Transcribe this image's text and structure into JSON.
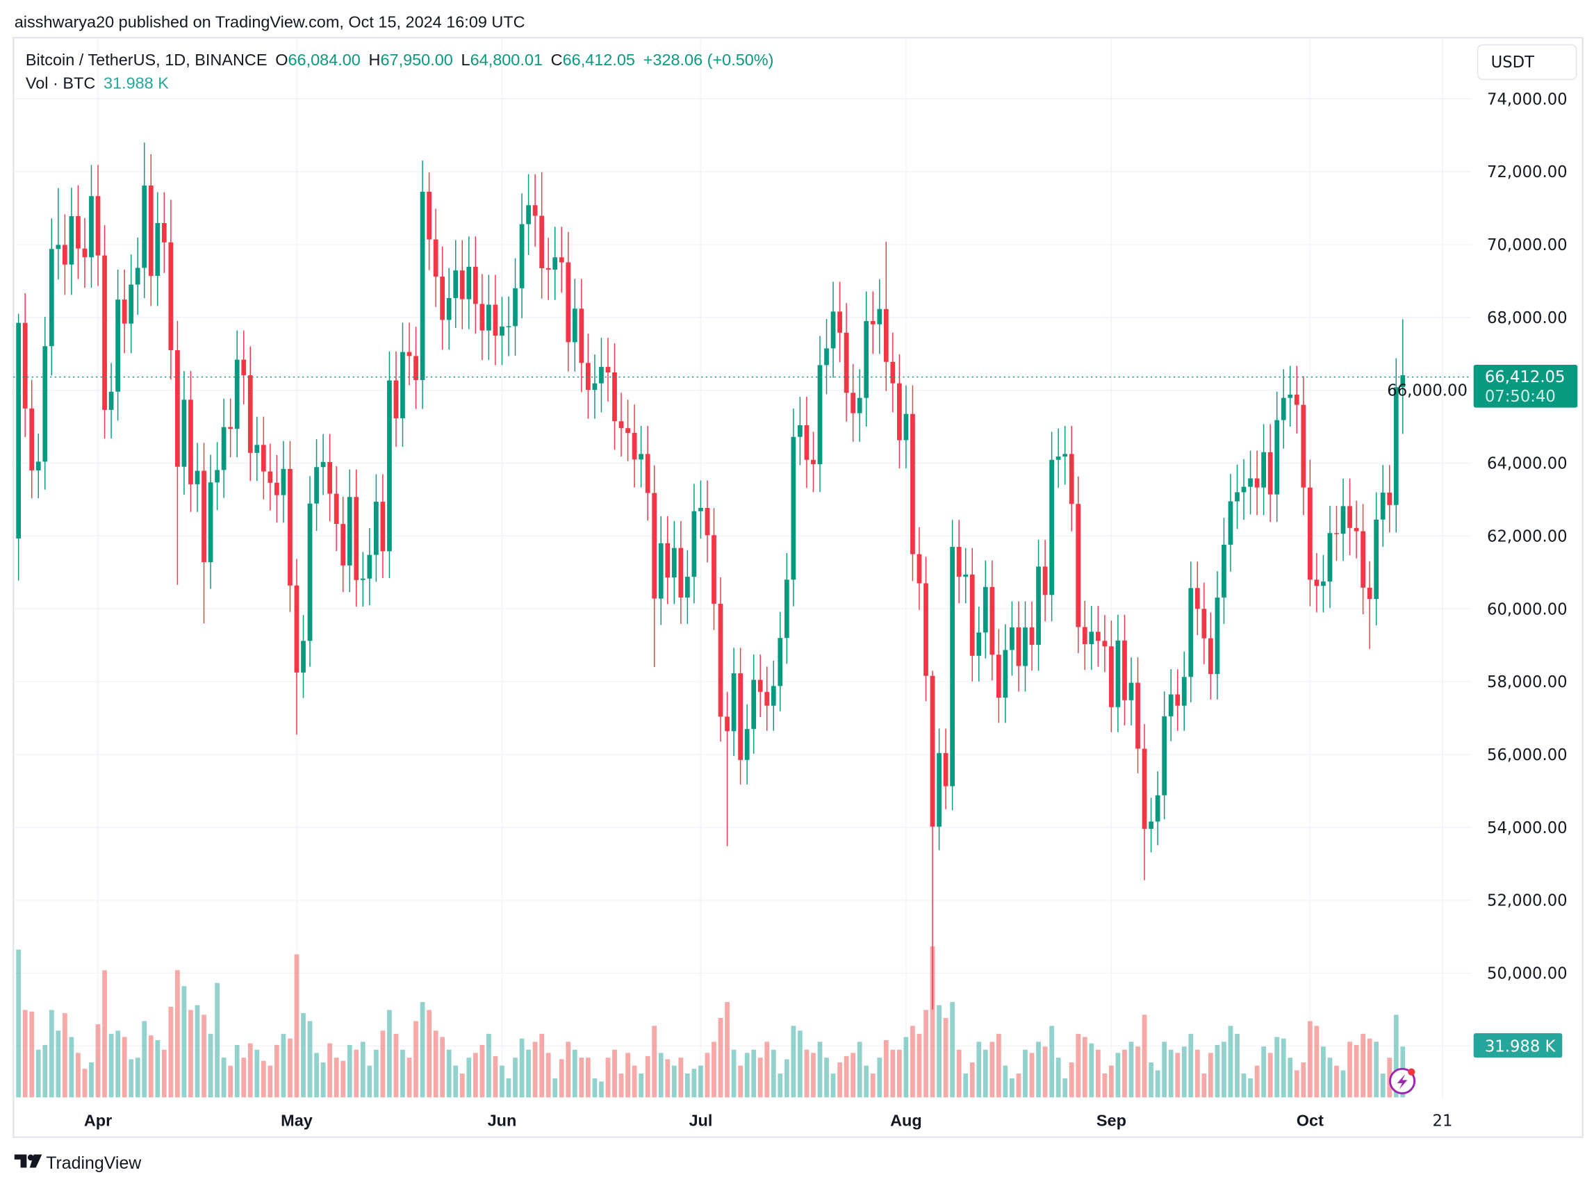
{
  "header": {
    "published": "aisshwarya20 published on TradingView.com, Oct 15, 2024 16:09 UTC"
  },
  "legend": {
    "symbol": "Bitcoin / TetherUS, 1D, BINANCE",
    "o_label": "O",
    "o_value": "66,084.00",
    "h_label": "H",
    "h_value": "67,950.00",
    "l_label": "L",
    "l_value": "64,800.01",
    "c_label": "C",
    "c_value": "66,412.05",
    "change": "+328.06 (+0.50%)",
    "vol_label": "Vol · BTC",
    "vol_value": "31.988 K"
  },
  "price_axis": {
    "currency": "USDT",
    "last_price": "66,412.05",
    "countdown": "07:50:40",
    "volume_label": "31.988 K"
  },
  "footer": {
    "brand": "TradingView"
  },
  "colors": {
    "up": "#089981",
    "down": "#f23645",
    "vol_up": "#26a69a",
    "vol_down": "#ef5350",
    "grid": "#f0f3fa"
  },
  "chart_data": {
    "type": "candlestick",
    "title": "Bitcoin / TetherUS, 1D, BINANCE",
    "start_date": "2024-03-20",
    "end_date": "2024-10-15",
    "first_open": 61930,
    "ylim": [
      47000,
      74600
    ],
    "y_ticks": [
      74000,
      72000,
      70000,
      68000,
      66000,
      64000,
      62000,
      60000,
      58000,
      56000,
      54000,
      52000,
      50000
    ],
    "y_tick_labels": [
      "74,000.00",
      "72,000.00",
      "70,000.00",
      "68,000.00",
      "66,000.00",
      "64,000.00",
      "62,000.00",
      "60,000.00",
      "58,000.00",
      "56,000.00",
      "54,000.00",
      "52,000.00",
      "50,000.00"
    ],
    "x_ticks": [
      {
        "label": "Apr",
        "day_index": 12
      },
      {
        "label": "May",
        "day_index": 42
      },
      {
        "label": "Jun",
        "day_index": 73
      },
      {
        "label": "Jul",
        "day_index": 103
      },
      {
        "label": "Aug",
        "day_index": 134
      },
      {
        "label": "Sep",
        "day_index": 165
      },
      {
        "label": "Oct",
        "day_index": 195
      },
      {
        "label": "21",
        "day_index": 215
      }
    ],
    "close": [
      67850,
      65500,
      63800,
      64040,
      67210,
      69880,
      69990,
      69450,
      70780,
      69890,
      69650,
      71330,
      69700,
      65460,
      65960,
      68490,
      67830,
      68900,
      69360,
      71620,
      69140,
      70590,
      70060,
      67100,
      63900,
      65740,
      63420,
      63790,
      61280,
      63470,
      63810,
      64990,
      64940,
      66840,
      66410,
      64280,
      64500,
      63770,
      63460,
      63120,
      63840,
      60640,
      58250,
      59120,
      62890,
      63890,
      64030,
      63160,
      62330,
      61190,
      63070,
      60790,
      60830,
      61480,
      62940,
      61580,
      66270,
      65230,
      67050,
      66940,
      66280,
      71450,
      70140,
      69120,
      67930,
      68530,
      69290,
      68500,
      69390,
      68370,
      67640,
      68350,
      67500,
      67750,
      67760,
      68800,
      70560,
      71080,
      70790,
      69350,
      69310,
      69650,
      69510,
      67320,
      68240,
      66750,
      66010,
      66190,
      66640,
      66490,
      65150,
      64960,
      64830,
      64100,
      64250,
      63180,
      60280,
      61800,
      60860,
      61670,
      60310,
      60880,
      62680,
      62770,
      62020,
      60140,
      57040,
      56640,
      58230,
      55850,
      56700,
      58050,
      57720,
      57340,
      57880,
      59200,
      60800,
      64720,
      65040,
      64090,
      63970,
      66690,
      67150,
      68160,
      67580,
      65930,
      65370,
      65790,
      67900,
      67810,
      68230,
      66780,
      66190,
      64630,
      65350,
      61500,
      60700,
      58160,
      54020,
      56040,
      55130,
      61700,
      60880,
      60940,
      58710,
      59350,
      60600,
      58740,
      57560,
      58870,
      59490,
      58430,
      59490,
      59010,
      61160,
      60380,
      64090,
      64180,
      64250,
      62880,
      59500,
      59030,
      59370,
      59120,
      58970,
      57300,
      59130,
      57490,
      57970,
      56160,
      53960,
      54160,
      54880,
      57050,
      57650,
      57340,
      58130,
      60570,
      60000,
      59190,
      58210,
      60310,
      61760,
      62950,
      63200,
      63350,
      63580,
      63330,
      64300,
      63140,
      65180,
      65790,
      65880,
      65600,
      63330,
      60800,
      60630,
      60750,
      62080,
      62060,
      62820,
      62220,
      62130,
      60580,
      60270,
      62450,
      63190,
      62850,
      66084,
      66412.05
    ],
    "high_overrides": {
      "0": 68100,
      "6": 71550,
      "8": 71560,
      "19": 72800,
      "23": 71230,
      "62": 71980,
      "79": 71990,
      "131": 70080,
      "138": 58300,
      "209": 67950
    },
    "low_overrides": {
      "0": 60775,
      "24": 60660,
      "28": 59600,
      "42": 56550,
      "96": 58400,
      "107": 53485,
      "138": 49000,
      "140": 54500,
      "170": 52550,
      "204": 58900,
      "209": 64800
    },
    "default_wick_pct": 1.2,
    "volume_k": [
      93,
      55,
      54,
      30,
      33,
      55,
      42,
      53,
      38,
      28,
      18,
      22,
      46,
      80,
      40,
      42,
      38,
      24,
      25,
      48,
      39,
      36,
      30,
      57,
      80,
      70,
      55,
      58,
      52,
      40,
      72,
      25,
      20,
      33,
      25,
      34,
      30,
      23,
      20,
      33,
      40,
      37,
      90,
      53,
      48,
      28,
      22,
      34,
      25,
      23,
      33,
      30,
      35,
      20,
      30,
      42,
      55,
      40,
      30,
      25,
      48,
      60,
      55,
      42,
      38,
      30,
      20,
      15,
      25,
      28,
      33,
      40,
      26,
      20,
      12,
      25,
      37,
      30,
      35,
      40,
      28,
      12,
      24,
      35,
      30,
      25,
      25,
      12,
      10,
      25,
      30,
      15,
      28,
      20,
      15,
      26,
      45,
      28,
      24,
      20,
      25,
      15,
      18,
      20,
      28,
      35,
      50,
      60,
      30,
      20,
      28,
      30,
      25,
      35,
      30,
      15,
      24,
      45,
      42,
      30,
      28,
      35,
      25,
      15,
      22,
      26,
      28,
      35,
      20,
      15,
      25,
      36,
      30,
      30,
      38,
      45,
      40,
      55,
      95,
      58,
      50,
      60,
      30,
      15,
      22,
      35,
      30,
      35,
      40,
      20,
      12,
      15,
      30,
      28,
      35,
      32,
      45,
      25,
      12,
      22,
      40,
      38,
      34,
      30,
      15,
      20,
      28,
      30,
      35,
      32,
      52,
      22,
      17,
      35,
      30,
      28,
      32,
      40,
      30,
      15,
      28,
      33,
      35,
      45,
      40,
      15,
      12,
      20,
      32,
      28,
      38,
      37,
      25,
      17,
      22,
      48,
      45,
      32,
      25,
      20,
      17,
      35,
      33,
      40,
      37,
      35,
      15,
      25,
      52,
      31.988
    ]
  }
}
